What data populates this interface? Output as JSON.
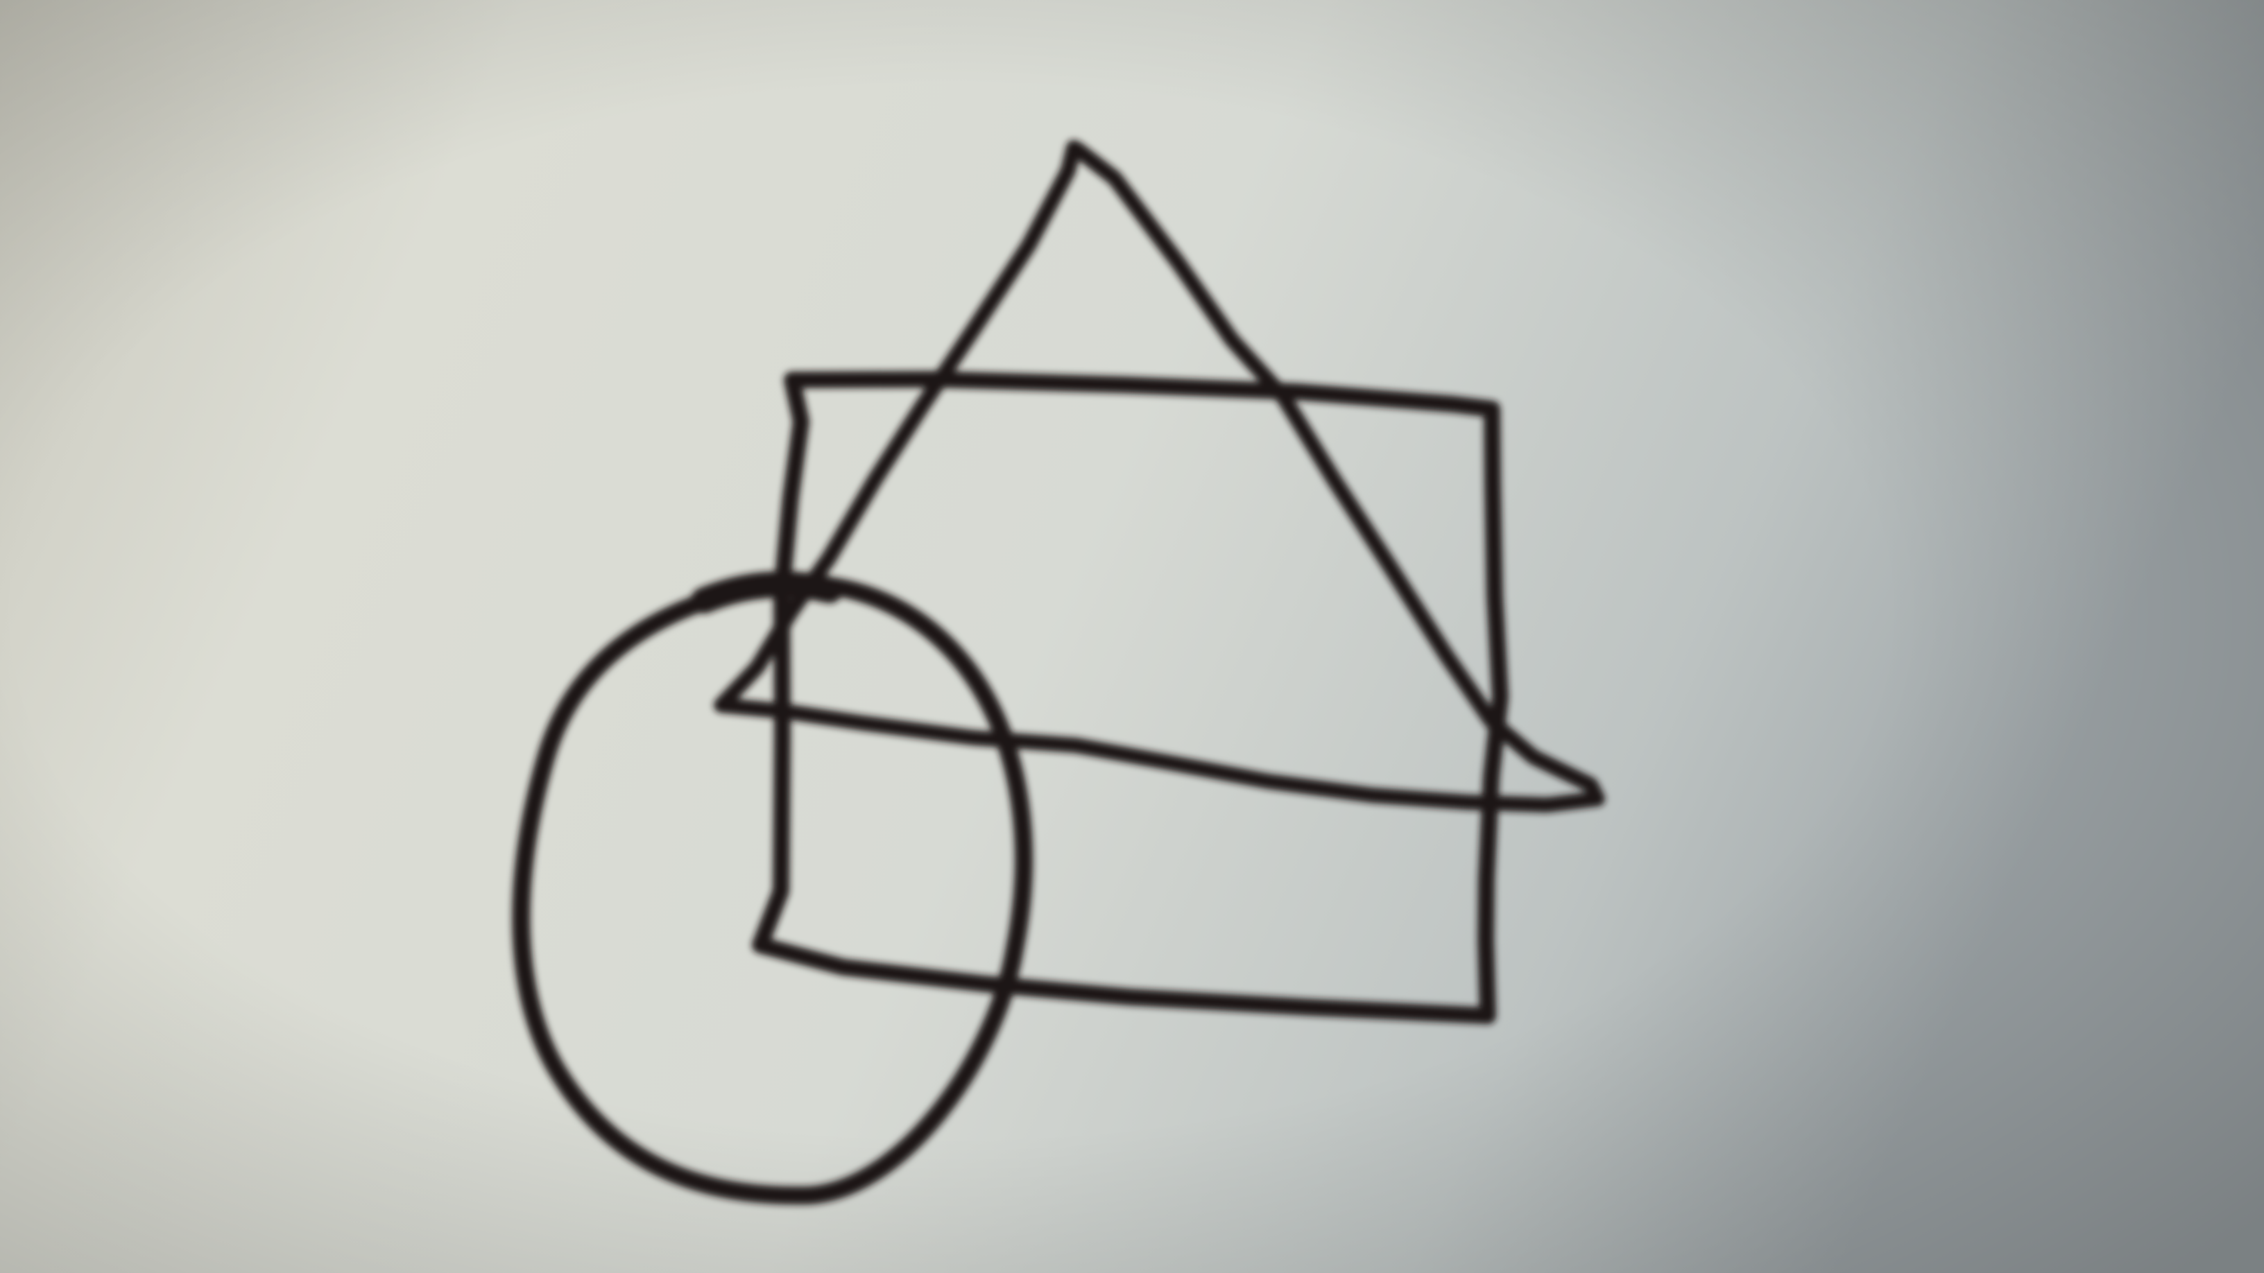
{
  "photo": {
    "subject": "hand-drawn-shapes",
    "shapes": [
      "triangle",
      "rectangle",
      "ellipse"
    ],
    "colors": {
      "ink": "#1c1416",
      "paper_light": "#dcded6",
      "paper_mid": "#c9cdc6",
      "paper_shadow": "#9ea4a6"
    }
  }
}
